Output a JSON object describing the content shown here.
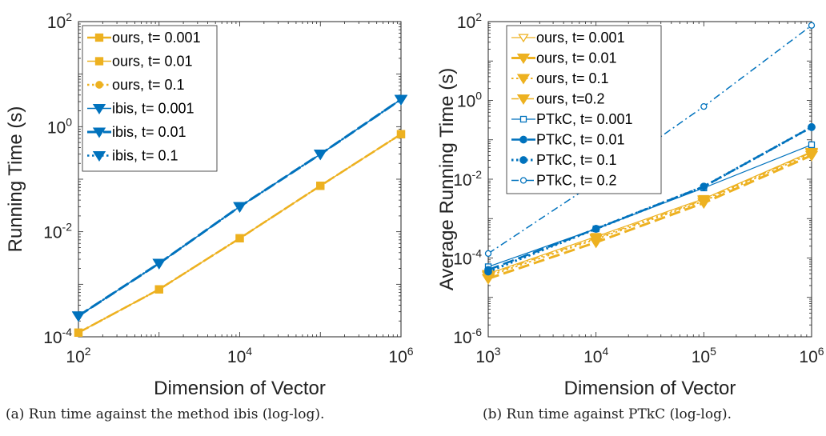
{
  "chart_data": [
    {
      "type": "line",
      "scale": "log-log",
      "xlabel": "Dimension of Vector",
      "ylabel": "Running Time (s)",
      "xlim": [
        100,
        1000000
      ],
      "ylim": [
        0.0001,
        100
      ],
      "x_ticks": [
        {
          "base": "10",
          "exp": "2",
          "value": 100
        },
        {
          "base": "10",
          "exp": "4",
          "value": 10000
        },
        {
          "base": "10",
          "exp": "6",
          "value": 1000000
        }
      ],
      "y_ticks": [
        {
          "base": "10",
          "exp": "-4",
          "value": 0.0001
        },
        {
          "base": "10",
          "exp": "-2",
          "value": 0.01
        },
        {
          "base": "10",
          "exp": "0",
          "value": 1
        },
        {
          "base": "10",
          "exp": "2",
          "value": 100
        }
      ],
      "grid": false,
      "legend_position": "top-left",
      "caption": "(a) Run time against the method ibis (log-log).",
      "series": [
        {
          "name": "ours, t= 0.001",
          "color": "#EDB120",
          "marker": "square",
          "dash": "long-dash",
          "width": 2.5,
          "x": [
            100,
            1000,
            10000,
            100000,
            1000000
          ],
          "y": [
            0.00012,
            0.0008,
            0.0075,
            0.075,
            0.72
          ]
        },
        {
          "name": "ours, t= 0.01",
          "color": "#EDB120",
          "marker": "square",
          "dash": "solid",
          "width": 1.5,
          "x": [
            100,
            1000,
            10000,
            100000,
            1000000
          ],
          "y": [
            0.00012,
            0.0008,
            0.0075,
            0.075,
            0.72
          ]
        },
        {
          "name": "ours, t= 0.1",
          "color": "#EDB120",
          "marker": "circle",
          "dash": "dotted",
          "width": 2.5,
          "x": [
            100,
            1000,
            10000,
            100000,
            1000000
          ],
          "y": [
            0.00012,
            0.0008,
            0.0075,
            0.075,
            0.72
          ]
        },
        {
          "name": "ibis, t= 0.001",
          "color": "#0072BD",
          "marker": "triangle-down",
          "dash": "solid",
          "width": 1.5,
          "x": [
            100,
            1000,
            10000,
            100000,
            1000000
          ],
          "y": [
            0.00025,
            0.0025,
            0.03,
            0.3,
            3.3
          ]
        },
        {
          "name": "ibis, t= 0.01",
          "color": "#0072BD",
          "marker": "triangle-down",
          "dash": "long-dash",
          "width": 3,
          "x": [
            100,
            1000,
            10000,
            100000,
            1000000
          ],
          "y": [
            0.00025,
            0.0025,
            0.03,
            0.3,
            3.3
          ]
        },
        {
          "name": "ibis, t= 0.1",
          "color": "#0072BD",
          "marker": "triangle-down",
          "dash": "dotted",
          "width": 2.5,
          "x": [
            100,
            1000,
            10000,
            100000,
            1000000
          ],
          "y": [
            0.00025,
            0.0025,
            0.03,
            0.3,
            3.3
          ]
        }
      ]
    },
    {
      "type": "line",
      "scale": "log-log",
      "xlabel": "Dimension of Vector",
      "ylabel": "Average Running Time (s)",
      "xlim": [
        1000,
        1000000
      ],
      "ylim": [
        1e-06,
        100
      ],
      "x_ticks": [
        {
          "base": "10",
          "exp": "3",
          "value": 1000
        },
        {
          "base": "10",
          "exp": "4",
          "value": 10000
        },
        {
          "base": "10",
          "exp": "5",
          "value": 100000
        },
        {
          "base": "10",
          "exp": "6",
          "value": 1000000
        }
      ],
      "y_ticks": [
        {
          "base": "10",
          "exp": "-6",
          "value": 1e-06
        },
        {
          "base": "10",
          "exp": "-4",
          "value": 0.0001
        },
        {
          "base": "10",
          "exp": "-2",
          "value": 0.01
        },
        {
          "base": "10",
          "exp": "0",
          "value": 1
        },
        {
          "base": "10",
          "exp": "2",
          "value": 100
        }
      ],
      "grid": false,
      "legend_position": "top-left",
      "caption": "(b) Run time against PTkC (log-log).",
      "series": [
        {
          "name": "ours, t= 0.001",
          "color": "#EDB120",
          "marker": "triangle-down-open",
          "dash": "solid",
          "width": 1.2,
          "x": [
            1000,
            10000,
            100000,
            1000000
          ],
          "y": [
            4e-05,
            0.00035,
            0.0032,
            0.05
          ]
        },
        {
          "name": "ours, t= 0.01",
          "color": "#EDB120",
          "marker": "triangle-down",
          "dash": "long-dash",
          "width": 3,
          "x": [
            1000,
            10000,
            100000,
            1000000
          ],
          "y": [
            3e-05,
            0.00025,
            0.0025,
            0.04
          ]
        },
        {
          "name": "ours, t= 0.1",
          "color": "#EDB120",
          "marker": "triangle-down",
          "dash": "dotted",
          "width": 2,
          "x": [
            1000,
            10000,
            100000,
            1000000
          ],
          "y": [
            3.5e-05,
            0.0003,
            0.0028,
            0.045
          ]
        },
        {
          "name": "ours, t=0.2",
          "color": "#EDB120",
          "marker": "triangle-down",
          "dash": "dash-dot",
          "width": 1.5,
          "x": [
            1000,
            10000,
            100000,
            1000000
          ],
          "y": [
            3.8e-05,
            0.00032,
            0.003,
            0.048
          ]
        },
        {
          "name": "PTkC, t= 0.001",
          "color": "#0072BD",
          "marker": "square-open",
          "dash": "solid",
          "width": 1.2,
          "x": [
            1000,
            10000,
            100000,
            1000000
          ],
          "y": [
            6e-05,
            0.00055,
            0.006,
            0.075
          ]
        },
        {
          "name": "PTkC, t= 0.01",
          "color": "#0072BD",
          "marker": "circle",
          "dash": "long-dash",
          "width": 2.5,
          "x": [
            1000,
            10000,
            100000,
            1000000
          ],
          "y": [
            5e-05,
            0.00055,
            0.0065,
            0.21
          ]
        },
        {
          "name": "PTkC, t= 0.1",
          "color": "#0072BD",
          "marker": "circle",
          "dash": "dotted",
          "width": 3,
          "x": [
            1000,
            10000,
            100000,
            1000000
          ],
          "y": [
            4.5e-05,
            0.00055,
            0.0065,
            0.21
          ]
        },
        {
          "name": "PTkC, t= 0.2",
          "color": "#0072BD",
          "marker": "circle-open",
          "dash": "dash-dot",
          "width": 1.5,
          "x": [
            1000,
            10000,
            100000,
            1000000
          ],
          "y": [
            0.00013,
            0.0085,
            0.7,
            80
          ]
        }
      ]
    }
  ]
}
